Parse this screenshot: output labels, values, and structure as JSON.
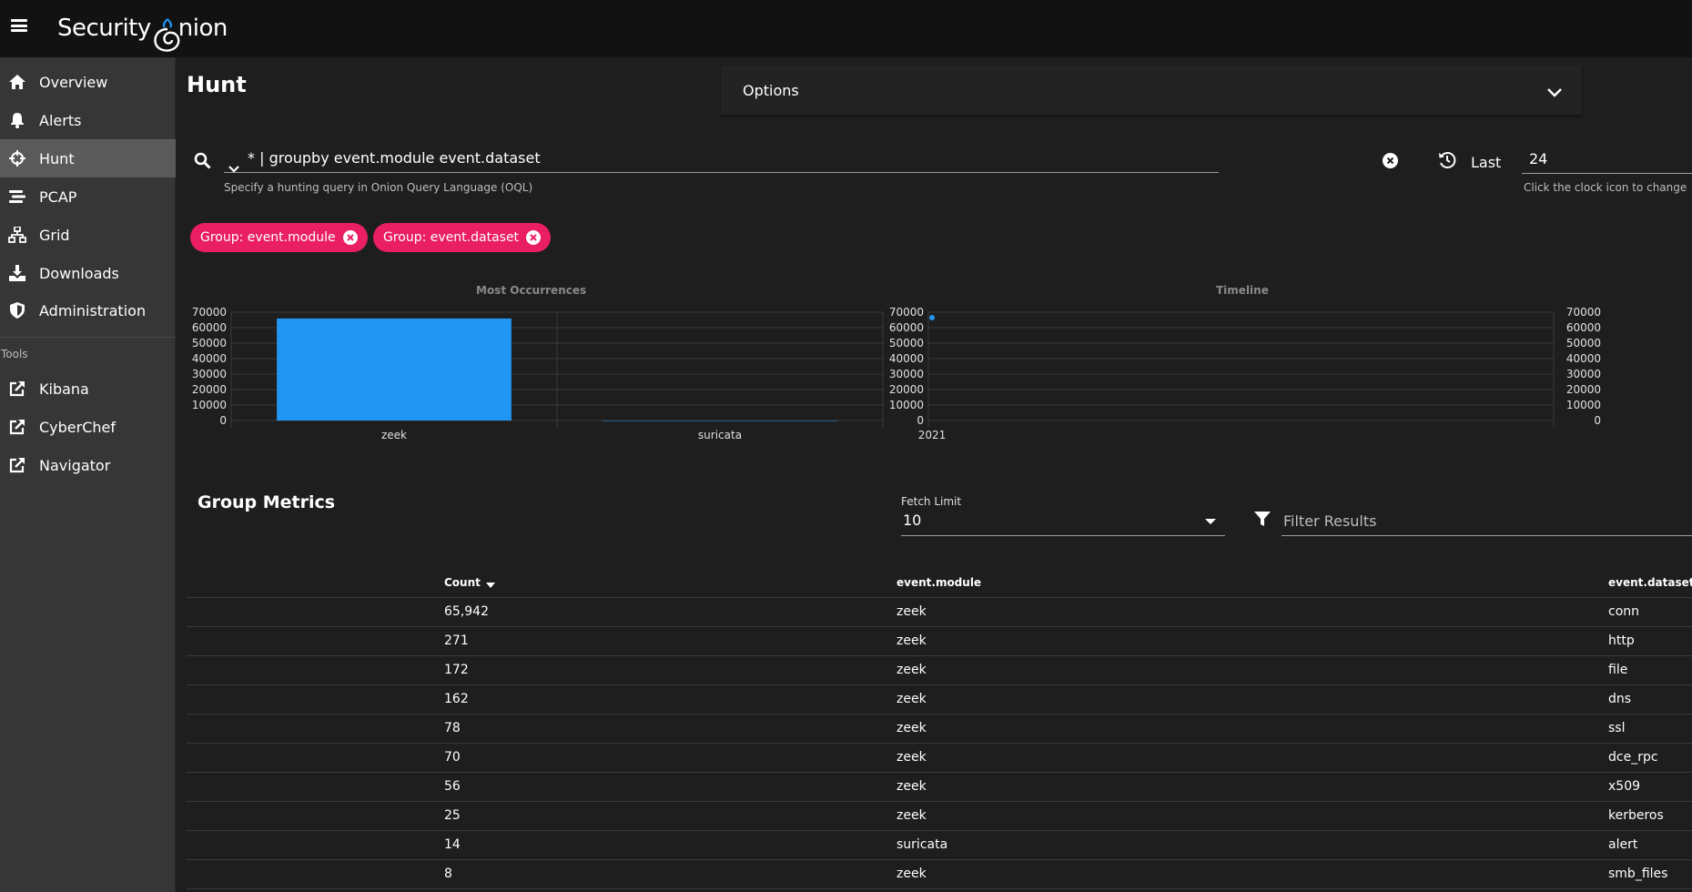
{
  "app": {
    "logo_text_1": "Security",
    "logo_text_2": "nion"
  },
  "sidebar": {
    "items": [
      {
        "label": "Overview",
        "icon": "home-icon"
      },
      {
        "label": "Alerts",
        "icon": "bell-icon"
      },
      {
        "label": "Hunt",
        "icon": "crosshairs-icon",
        "active": true
      },
      {
        "label": "PCAP",
        "icon": "stream-icon"
      },
      {
        "label": "Grid",
        "icon": "sitemap-icon"
      },
      {
        "label": "Downloads",
        "icon": "download-icon"
      },
      {
        "label": "Administration",
        "icon": "shield-icon"
      }
    ],
    "tools_label": "Tools",
    "tools": [
      {
        "label": "Kibana",
        "icon": "external-link-icon"
      },
      {
        "label": "CyberChef",
        "icon": "external-link-icon"
      },
      {
        "label": "Navigator",
        "icon": "external-link-icon"
      }
    ]
  },
  "page": {
    "title": "Hunt"
  },
  "options": {
    "label": "Options"
  },
  "query": {
    "value": "* | groupby event.module event.dataset",
    "hint": "Specify a hunting query in Onion Query Language (OQL)"
  },
  "time": {
    "label": "Last",
    "value": "24",
    "hint": "Click the clock icon to change"
  },
  "chips": [
    {
      "label": "Group: event.module"
    },
    {
      "label": "Group: event.dataset"
    }
  ],
  "colors": {
    "accent": "#e91e63",
    "bar": "#2196f3",
    "active_nav": "#5a5a5a"
  },
  "chart_data": [
    {
      "type": "bar",
      "title": "Most Occurrences",
      "categories": [
        "zeek",
        "suricata"
      ],
      "values": [
        65942,
        14
      ],
      "ylim": [
        0,
        70000
      ],
      "yticks": [
        "70000",
        "60000",
        "50000",
        "40000",
        "30000",
        "20000",
        "10000",
        "0"
      ],
      "grid": true
    },
    {
      "type": "line",
      "title": "Timeline",
      "x": [
        "2021"
      ],
      "values": [
        66500
      ],
      "ylim": [
        0,
        70000
      ],
      "yticks": [
        "70000",
        "60000",
        "50000",
        "40000",
        "30000",
        "20000",
        "10000",
        "0"
      ],
      "grid": true
    }
  ],
  "metrics": {
    "title": "Group Metrics",
    "fetch_limit_label": "Fetch Limit",
    "fetch_limit_value": "10",
    "filter_placeholder": "Filter Results",
    "columns": [
      "Count",
      "event.module",
      "event.dataset"
    ],
    "rows": [
      [
        "65,942",
        "zeek",
        "conn"
      ],
      [
        "271",
        "zeek",
        "http"
      ],
      [
        "172",
        "zeek",
        "file"
      ],
      [
        "162",
        "zeek",
        "dns"
      ],
      [
        "78",
        "zeek",
        "ssl"
      ],
      [
        "70",
        "zeek",
        "dce_rpc"
      ],
      [
        "56",
        "zeek",
        "x509"
      ],
      [
        "25",
        "zeek",
        "kerberos"
      ],
      [
        "14",
        "suricata",
        "alert"
      ],
      [
        "8",
        "zeek",
        "smb_files"
      ]
    ]
  }
}
